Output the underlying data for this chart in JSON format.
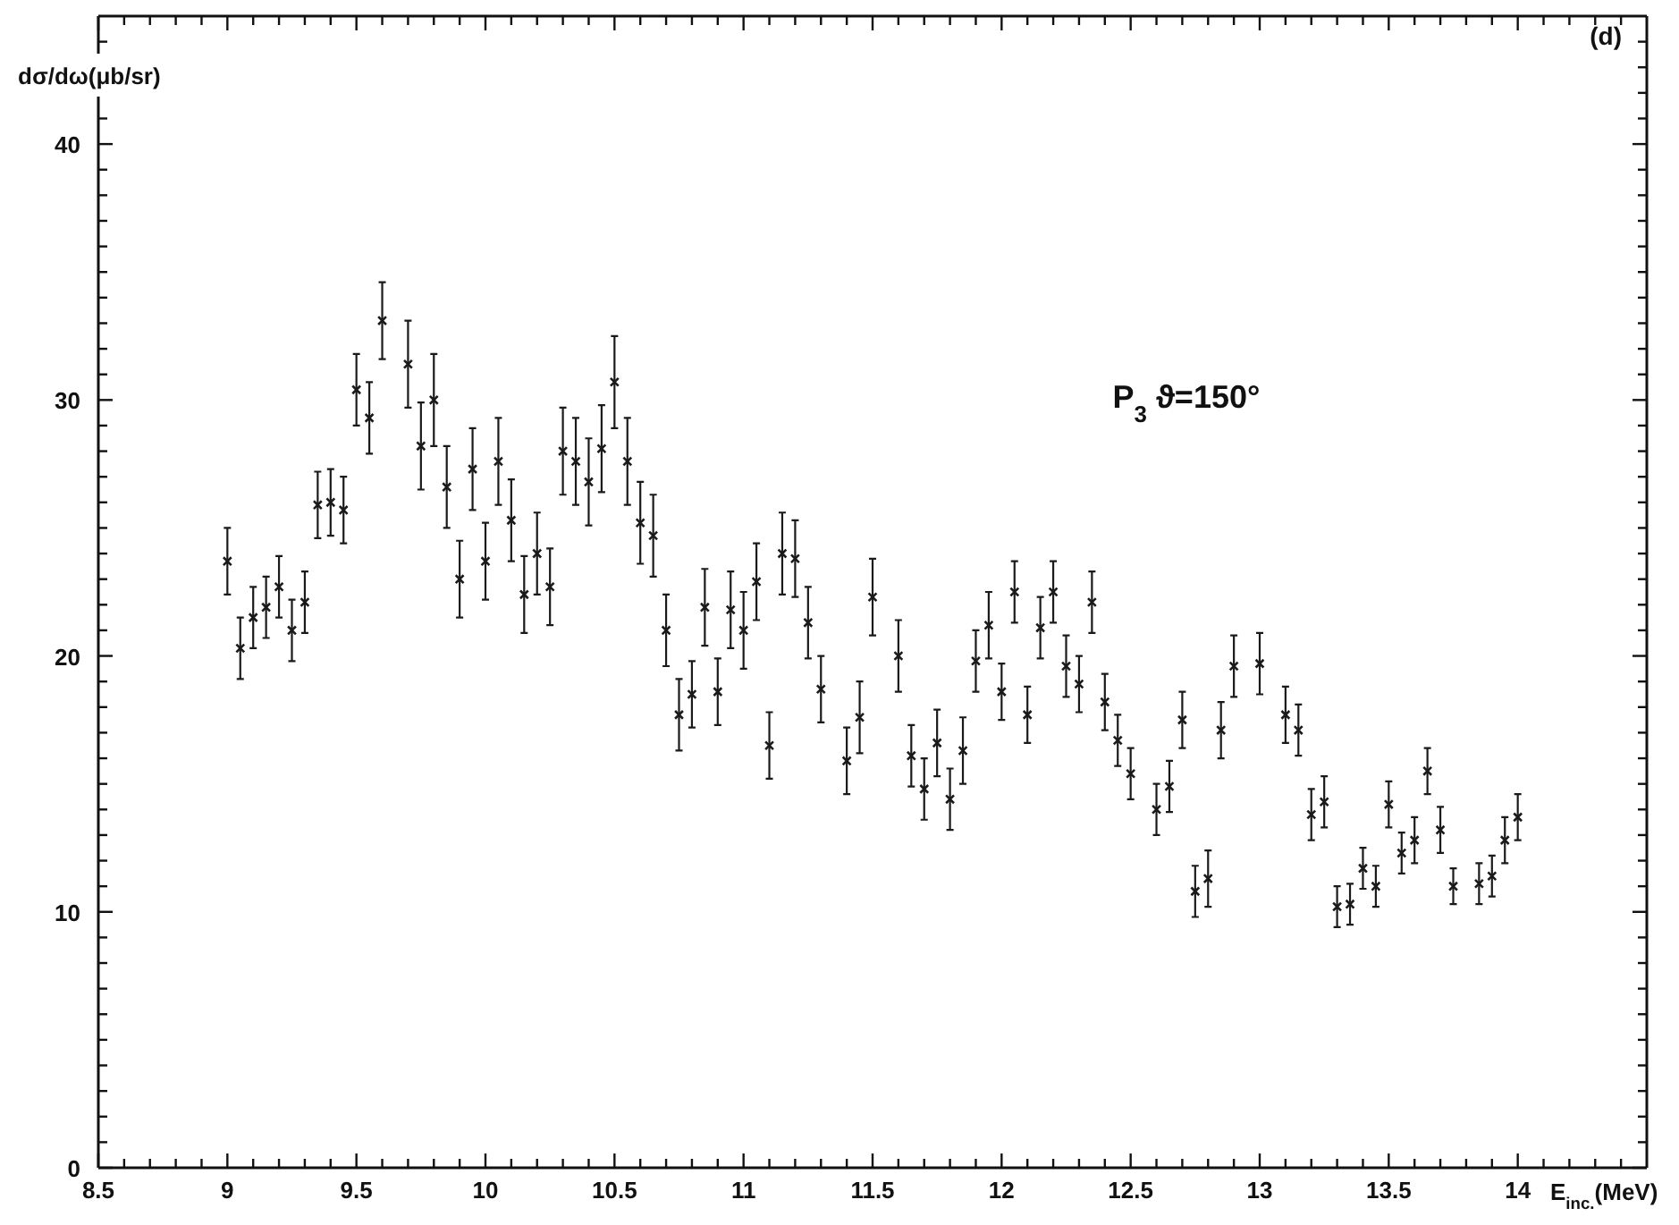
{
  "chart_data": {
    "type": "scatter",
    "title": "(d)",
    "xlabel": "E$_{inc.}$(MeV)",
    "ylabel": "dσ/dω(μb/sr)",
    "annotations": [
      "P$_{3}$ ϑ=150°"
    ],
    "marker": "cross",
    "color": "#1a1a1a",
    "x": [
      9,
      9.05,
      9.1,
      9.15,
      9.2,
      9.25,
      9.3,
      9.35,
      9.4,
      9.45,
      9.5,
      9.55,
      9.6,
      9.7,
      9.75,
      9.8,
      9.85,
      9.9,
      9.95,
      10,
      10.05,
      10.1,
      10.15,
      10.2,
      10.25,
      10.3,
      10.35,
      10.4,
      10.45,
      10.5,
      10.55,
      10.6,
      10.65,
      10.7,
      10.75,
      10.8,
      10.85,
      10.9,
      10.95,
      11,
      11.05,
      11.1,
      11.15,
      11.2,
      11.25,
      11.3,
      11.4,
      11.45,
      11.5,
      11.6,
      11.65,
      11.7,
      11.75,
      11.8,
      11.85,
      11.9,
      11.95,
      12,
      12.05,
      12.1,
      12.15,
      12.2,
      12.25,
      12.3,
      12.35,
      12.4,
      12.45,
      12.5,
      12.6,
      12.65,
      12.7,
      12.75,
      12.8,
      12.85,
      12.9,
      13,
      13.1,
      13.15,
      13.2,
      13.25,
      13.3,
      13.35,
      13.4,
      13.45,
      13.5,
      13.55,
      13.6,
      13.65,
      13.7,
      13.75,
      13.85,
      13.9,
      13.95,
      14
    ],
    "values": [
      23.7,
      20.3,
      21.5,
      21.9,
      22.7,
      21.0,
      22.1,
      25.9,
      26.0,
      25.7,
      30.4,
      29.3,
      33.1,
      31.4,
      28.2,
      30.0,
      26.6,
      23.0,
      27.3,
      23.7,
      27.6,
      25.3,
      22.4,
      24.0,
      22.7,
      28.0,
      27.6,
      26.8,
      28.1,
      30.7,
      27.6,
      25.2,
      24.7,
      21.0,
      17.7,
      18.5,
      21.9,
      18.6,
      21.8,
      21.0,
      22.9,
      16.5,
      24.0,
      23.8,
      21.3,
      18.7,
      15.9,
      17.6,
      22.3,
      20.0,
      16.1,
      14.8,
      16.6,
      14.4,
      16.3,
      19.8,
      21.2,
      18.6,
      22.5,
      17.7,
      21.1,
      22.5,
      19.6,
      18.9,
      22.1,
      18.2,
      16.7,
      15.4,
      14.0,
      14.9,
      17.5,
      10.8,
      11.3,
      17.1,
      19.6,
      19.7,
      17.7,
      17.1,
      13.8,
      14.3,
      10.2,
      10.3,
      11.7,
      11.0,
      14.2,
      12.3,
      12.8,
      15.5,
      13.2,
      11.0,
      11.1,
      11.4,
      12.8,
      13.7
    ],
    "errors": [
      1.3,
      1.2,
      1.2,
      1.2,
      1.2,
      1.2,
      1.2,
      1.3,
      1.3,
      1.3,
      1.4,
      1.4,
      1.5,
      1.7,
      1.7,
      1.8,
      1.6,
      1.5,
      1.6,
      1.5,
      1.7,
      1.6,
      1.5,
      1.6,
      1.5,
      1.7,
      1.7,
      1.7,
      1.7,
      1.8,
      1.7,
      1.6,
      1.6,
      1.4,
      1.4,
      1.3,
      1.5,
      1.3,
      1.5,
      1.5,
      1.5,
      1.3,
      1.6,
      1.5,
      1.4,
      1.3,
      1.3,
      1.4,
      1.5,
      1.4,
      1.2,
      1.2,
      1.3,
      1.2,
      1.3,
      1.2,
      1.3,
      1.1,
      1.2,
      1.1,
      1.2,
      1.2,
      1.2,
      1.1,
      1.2,
      1.1,
      1.0,
      1.0,
      1.0,
      1.0,
      1.1,
      1.0,
      1.1,
      1.1,
      1.2,
      1.2,
      1.1,
      1.0,
      1.0,
      1.0,
      0.8,
      0.8,
      0.8,
      0.8,
      0.9,
      0.8,
      0.9,
      0.9,
      0.9,
      0.7,
      0.8,
      0.8,
      0.9,
      0.9
    ],
    "xlim": [
      8.5,
      14.5
    ],
    "xticks": [
      8.5,
      {
        "value": 8.6,
        "label": null
      },
      {
        "value": 8.7,
        "label": null
      },
      {
        "value": 8.8,
        "label": null
      },
      {
        "value": 8.9,
        "label": null
      },
      9,
      {
        "value": 9.1,
        "label": null
      },
      {
        "value": 9.2,
        "label": null
      },
      {
        "value": 9.3,
        "label": null
      },
      {
        "value": 9.4,
        "label": null
      },
      9.5,
      {
        "value": 9.6,
        "label": null
      },
      {
        "value": 9.7,
        "label": null
      },
      {
        "value": 9.8,
        "label": null
      },
      {
        "value": 9.9,
        "label": null
      },
      10,
      {
        "value": 10.1,
        "label": null
      },
      {
        "value": 10.2,
        "label": null
      },
      {
        "value": 10.3,
        "label": null
      },
      {
        "value": 10.4,
        "label": null
      },
      10.5,
      {
        "value": 10.6,
        "label": null
      },
      {
        "value": 10.7,
        "label": null
      },
      {
        "value": 10.8,
        "label": null
      },
      {
        "value": 10.9,
        "label": null
      },
      11,
      {
        "value": 11.1,
        "label": null
      },
      {
        "value": 11.2,
        "label": null
      },
      {
        "value": 11.3,
        "label": null
      },
      {
        "value": 11.4,
        "label": null
      },
      11.5,
      {
        "value": 11.6,
        "label": null
      },
      {
        "value": 11.7,
        "label": null
      },
      {
        "value": 11.8,
        "label": null
      },
      {
        "value": 11.9,
        "label": null
      },
      12,
      {
        "value": 12.1,
        "label": null
      },
      {
        "value": 12.2,
        "label": null
      },
      {
        "value": 12.3,
        "label": null
      },
      {
        "value": 12.4,
        "label": null
      },
      12.5,
      {
        "value": 12.6,
        "label": null
      },
      {
        "value": 12.7,
        "label": null
      },
      {
        "value": 12.8,
        "label": null
      },
      {
        "value": 12.9,
        "label": null
      },
      13,
      {
        "value": 13.1,
        "label": null
      },
      {
        "value": 13.2,
        "label": null
      },
      {
        "value": 13.3,
        "label": null
      },
      {
        "value": 13.4,
        "label": null
      },
      13.5,
      {
        "value": 13.6,
        "label": null
      },
      {
        "value": 13.7,
        "label": null
      },
      {
        "value": 13.8,
        "label": null
      },
      {
        "value": 13.9,
        "label": null
      },
      14,
      {
        "value": 14.1,
        "label": null
      },
      {
        "value": 14.2,
        "label": null
      },
      {
        "value": 14.3,
        "label": null
      },
      {
        "value": 14.4,
        "label": null
      }
    ],
    "ylim": [
      0,
      45
    ],
    "yticks": [
      0,
      {
        "value": 1,
        "label": null
      },
      {
        "value": 2,
        "label": null
      },
      {
        "value": 3,
        "label": null
      },
      {
        "value": 4,
        "label": null
      },
      {
        "value": 5,
        "label": null
      },
      {
        "value": 6,
        "label": null
      },
      {
        "value": 7,
        "label": null
      },
      {
        "value": 8,
        "label": null
      },
      {
        "value": 9,
        "label": null
      },
      10,
      {
        "value": 11,
        "label": null
      },
      {
        "value": 12,
        "label": null
      },
      {
        "value": 13,
        "label": null
      },
      {
        "value": 14,
        "label": null
      },
      {
        "value": 15,
        "label": null
      },
      {
        "value": 16,
        "label": null
      },
      {
        "value": 17,
        "label": null
      },
      {
        "value": 18,
        "label": null
      },
      {
        "value": 19,
        "label": null
      },
      20,
      {
        "value": 21,
        "label": null
      },
      {
        "value": 22,
        "label": null
      },
      {
        "value": 23,
        "label": null
      },
      {
        "value": 24,
        "label": null
      },
      {
        "value": 25,
        "label": null
      },
      {
        "value": 26,
        "label": null
      },
      {
        "value": 27,
        "label": null
      },
      {
        "value": 28,
        "label": null
      },
      {
        "value": 29,
        "label": null
      },
      30,
      {
        "value": 31,
        "label": null
      },
      {
        "value": 32,
        "label": null
      },
      {
        "value": 33,
        "label": null
      },
      {
        "value": 34,
        "label": null
      },
      {
        "value": 35,
        "label": null
      },
      {
        "value": 36,
        "label": null
      },
      {
        "value": 37,
        "label": null
      },
      {
        "value": 38,
        "label": null
      },
      {
        "value": 39,
        "label": null
      },
      40,
      {
        "value": 41,
        "label": null
      },
      {
        "value": 42,
        "label": null
      },
      {
        "value": 43,
        "label": null
      },
      {
        "value": 44,
        "label": null
      }
    ]
  }
}
